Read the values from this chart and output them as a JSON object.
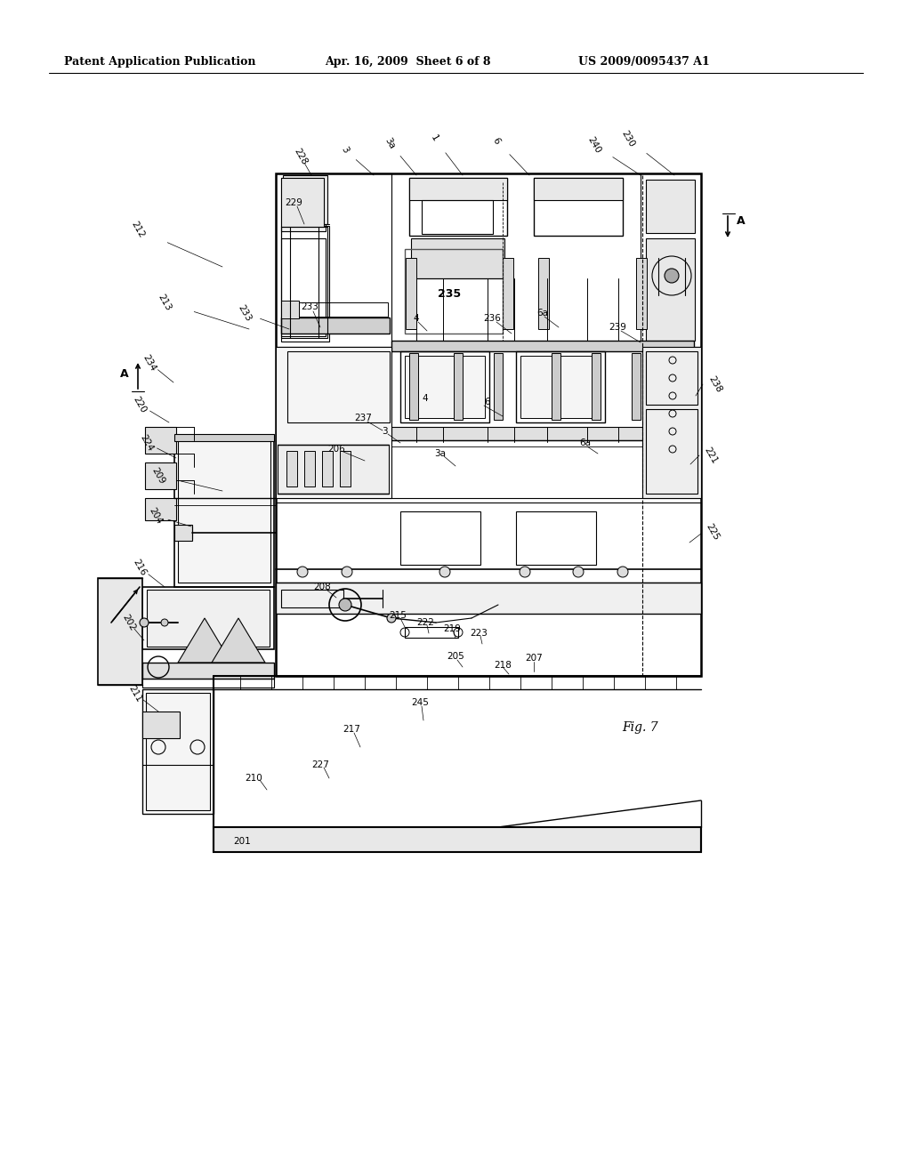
{
  "bg_color": "#ffffff",
  "header_left": "Patent Application Publication",
  "header_center": "Apr. 16, 2009  Sheet 6 of 8",
  "header_right": "US 2009/0095437 A1",
  "fig_label": "Fig. 7",
  "header_fontsize": 9,
  "label_fontsize": 7.5
}
